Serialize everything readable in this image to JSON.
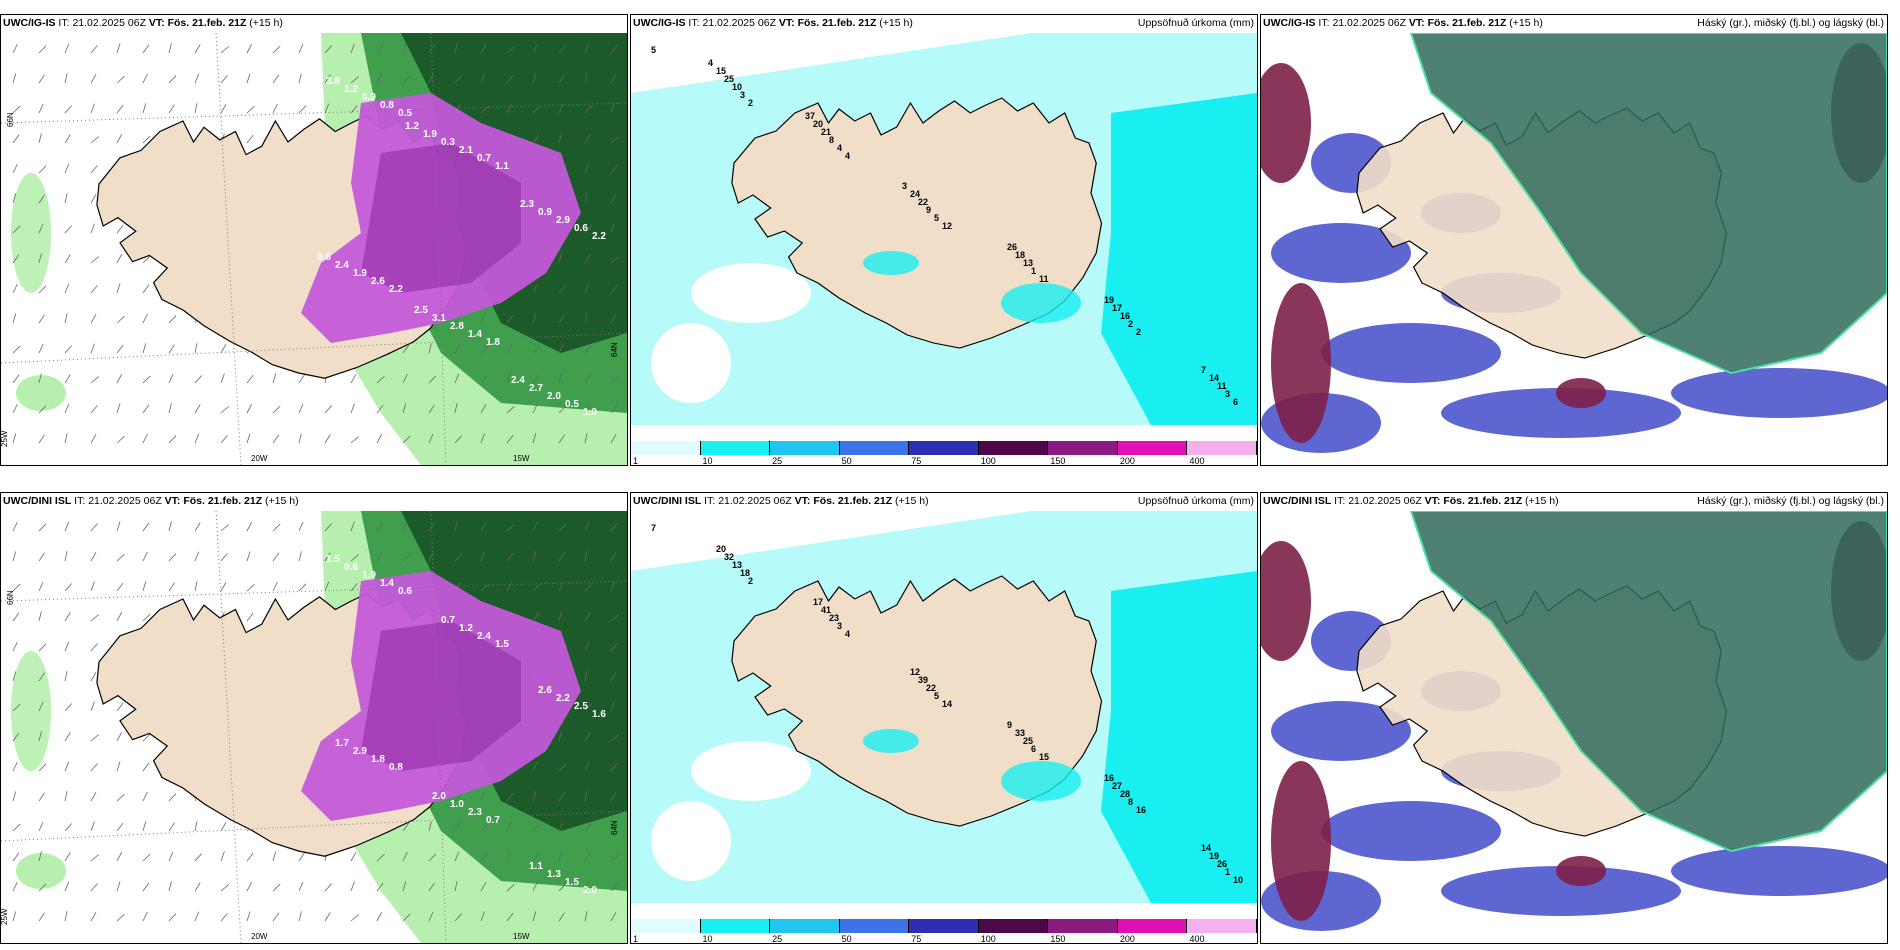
{
  "panels": [
    {
      "id": "top-left",
      "model": "UWC/IG-IS",
      "it_label": "IT:",
      "it": "21.02.2025 06Z",
      "vt_label": "VT:",
      "vt": "Fös. 21.feb. 21Z",
      "lead": "(+15 h)",
      "right_title": "",
      "kind": "precip-rate",
      "axis_labels": [
        "20W",
        "15W",
        "25W",
        "66N",
        "64N"
      ],
      "values": [
        "0.6",
        "0.5",
        "1.1",
        "2.2",
        "2.2",
        "1.8",
        "1.0",
        "0.8",
        "0.7",
        "0.6",
        "2.6",
        "1.4",
        "0.5",
        "0.9",
        "2.1",
        "2.9",
        "1.9",
        "2.8",
        "2.0",
        "1.2",
        "0.3",
        "0.9",
        "2.4",
        "3.1",
        "2.7",
        "3.8",
        "1.9",
        "2.3",
        "0.6",
        "2.5",
        "2.4",
        "0.9",
        "1.2"
      ]
    },
    {
      "id": "top-middle",
      "model": "UWC/IG-IS",
      "it_label": "IT:",
      "it": "21.02.2025 06Z",
      "vt_label": "VT:",
      "vt": "Fös. 21.feb. 21Z",
      "lead": "(+15 h)",
      "right_title": "Uppsöfnuð úrkoma (mm)",
      "kind": "accum",
      "values": [
        "5",
        "2",
        "4",
        "12",
        "11",
        "2",
        "6",
        "3",
        "4",
        "5",
        "1",
        "2",
        "3",
        "10",
        "8",
        "9",
        "13",
        "16",
        "11",
        "25",
        "21",
        "22",
        "18",
        "17",
        "14",
        "15",
        "20",
        "24",
        "26",
        "19",
        "7",
        "4",
        "37",
        "3"
      ]
    },
    {
      "id": "top-right",
      "model": "UWC/IG-IS",
      "it_label": "IT:",
      "it": "21.02.2025 06Z",
      "vt_label": "VT:",
      "vt": "Fös. 21.feb. 21Z",
      "lead": "(+15 h)",
      "right_title": "Háský (gr.), miðský (fj.bl.) og lágský (bl.)",
      "kind": "cloud"
    },
    {
      "id": "bottom-left",
      "model": "UWC/DINI ISL",
      "it_label": "IT:",
      "it": "21.02.2025 06Z",
      "vt_label": "VT:",
      "vt": "Fös. 21.feb. 21Z",
      "lead": "(+15 h)",
      "right_title": "",
      "kind": "precip-rate",
      "axis_labels": [
        "20W",
        "15W",
        "25W",
        "66N",
        "64N"
      ],
      "values": [
        "0.7",
        "0.6",
        "1.5",
        "1.6",
        "0.8",
        "0.7",
        "2.0",
        "1.4",
        "2.4",
        "2.5",
        "1.8",
        "2.3",
        "1.5",
        "1.9",
        "1.2",
        "2.2",
        "2.9",
        "1.0",
        "1.3",
        "0.6",
        "0.7",
        "2.6",
        "1.7",
        "2.0",
        "1.1",
        "1.5"
      ]
    },
    {
      "id": "bottom-middle",
      "model": "UWC/DINI ISL",
      "it_label": "IT:",
      "it": "21.02.2025 06Z",
      "vt_label": "VT:",
      "vt": "Fös. 21.feb. 21Z",
      "lead": "(+15 h)",
      "right_title": "Uppsöfnuð úrkoma (mm)",
      "kind": "accum",
      "values": [
        "7",
        "2",
        "4",
        "14",
        "15",
        "16",
        "10",
        "18",
        "3",
        "5",
        "6",
        "8",
        "1",
        "13",
        "23",
        "22",
        "25",
        "28",
        "26",
        "32",
        "41",
        "39",
        "33",
        "27",
        "19",
        "20",
        "17",
        "12",
        "9",
        "16",
        "14"
      ]
    },
    {
      "id": "bottom-right",
      "model": "UWC/DINI ISL",
      "it_label": "IT:",
      "it": "21.02.2025 06Z",
      "vt_label": "VT:",
      "vt": "Fös. 21.feb. 21Z",
      "lead": "(+15 h)",
      "right_title": "Háský (gr.), miðský (fj.bl.) og lágský (bl.)",
      "kind": "cloud"
    }
  ],
  "colorbar": {
    "ticks": [
      "1",
      "10",
      "25",
      "50",
      "75",
      "100",
      "150",
      "200",
      "400"
    ],
    "colors": [
      "#e0fcff",
      "#19eef0",
      "#20c6ef",
      "#3c73e9",
      "#2c2fb4",
      "#4c0848",
      "#8a1a7e",
      "#e010b4",
      "#f5b0f0"
    ]
  },
  "colors": {
    "land": "#f1dec8",
    "green_light": "#b7efae",
    "green_mid": "#3f9f4d",
    "green_dark": "#1d5a2a",
    "magenta": "#c35ad8",
    "magenta_dark": "#8d2a9f",
    "accum_light": "#b6fafa",
    "accum_mid": "#19eef0",
    "cloud_high": "#2f6a5a",
    "cloud_mid": "#7d1f48",
    "cloud_low": "#4c55cc"
  }
}
